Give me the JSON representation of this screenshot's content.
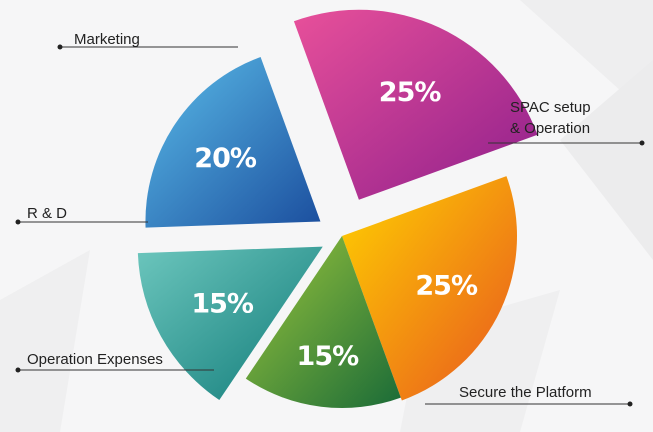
{
  "chart_data": {
    "type": "pie",
    "style": "exploded",
    "title": "",
    "slices": [
      {
        "label": "Marketing",
        "value": 25,
        "display": "25%",
        "colors": [
          "#e8509a",
          "#8e1f8c"
        ]
      },
      {
        "label_lines": [
          "SPAC setup",
          "& Operation"
        ],
        "value": 25,
        "display": "25%",
        "colors": [
          "#ffd200",
          "#e8561f"
        ]
      },
      {
        "label": "Secure the Platform",
        "value": 15,
        "display": "15%",
        "colors": [
          "#9cc63b",
          "#1a6b38"
        ]
      },
      {
        "label": "Operation Expenses",
        "value": 15,
        "display": "15%",
        "colors": [
          "#6cc6bd",
          "#0f7a78"
        ]
      },
      {
        "label": "R & D",
        "value": 20,
        "display": "20%",
        "colors": [
          "#5bbde9",
          "#1b4e9e"
        ]
      }
    ]
  }
}
